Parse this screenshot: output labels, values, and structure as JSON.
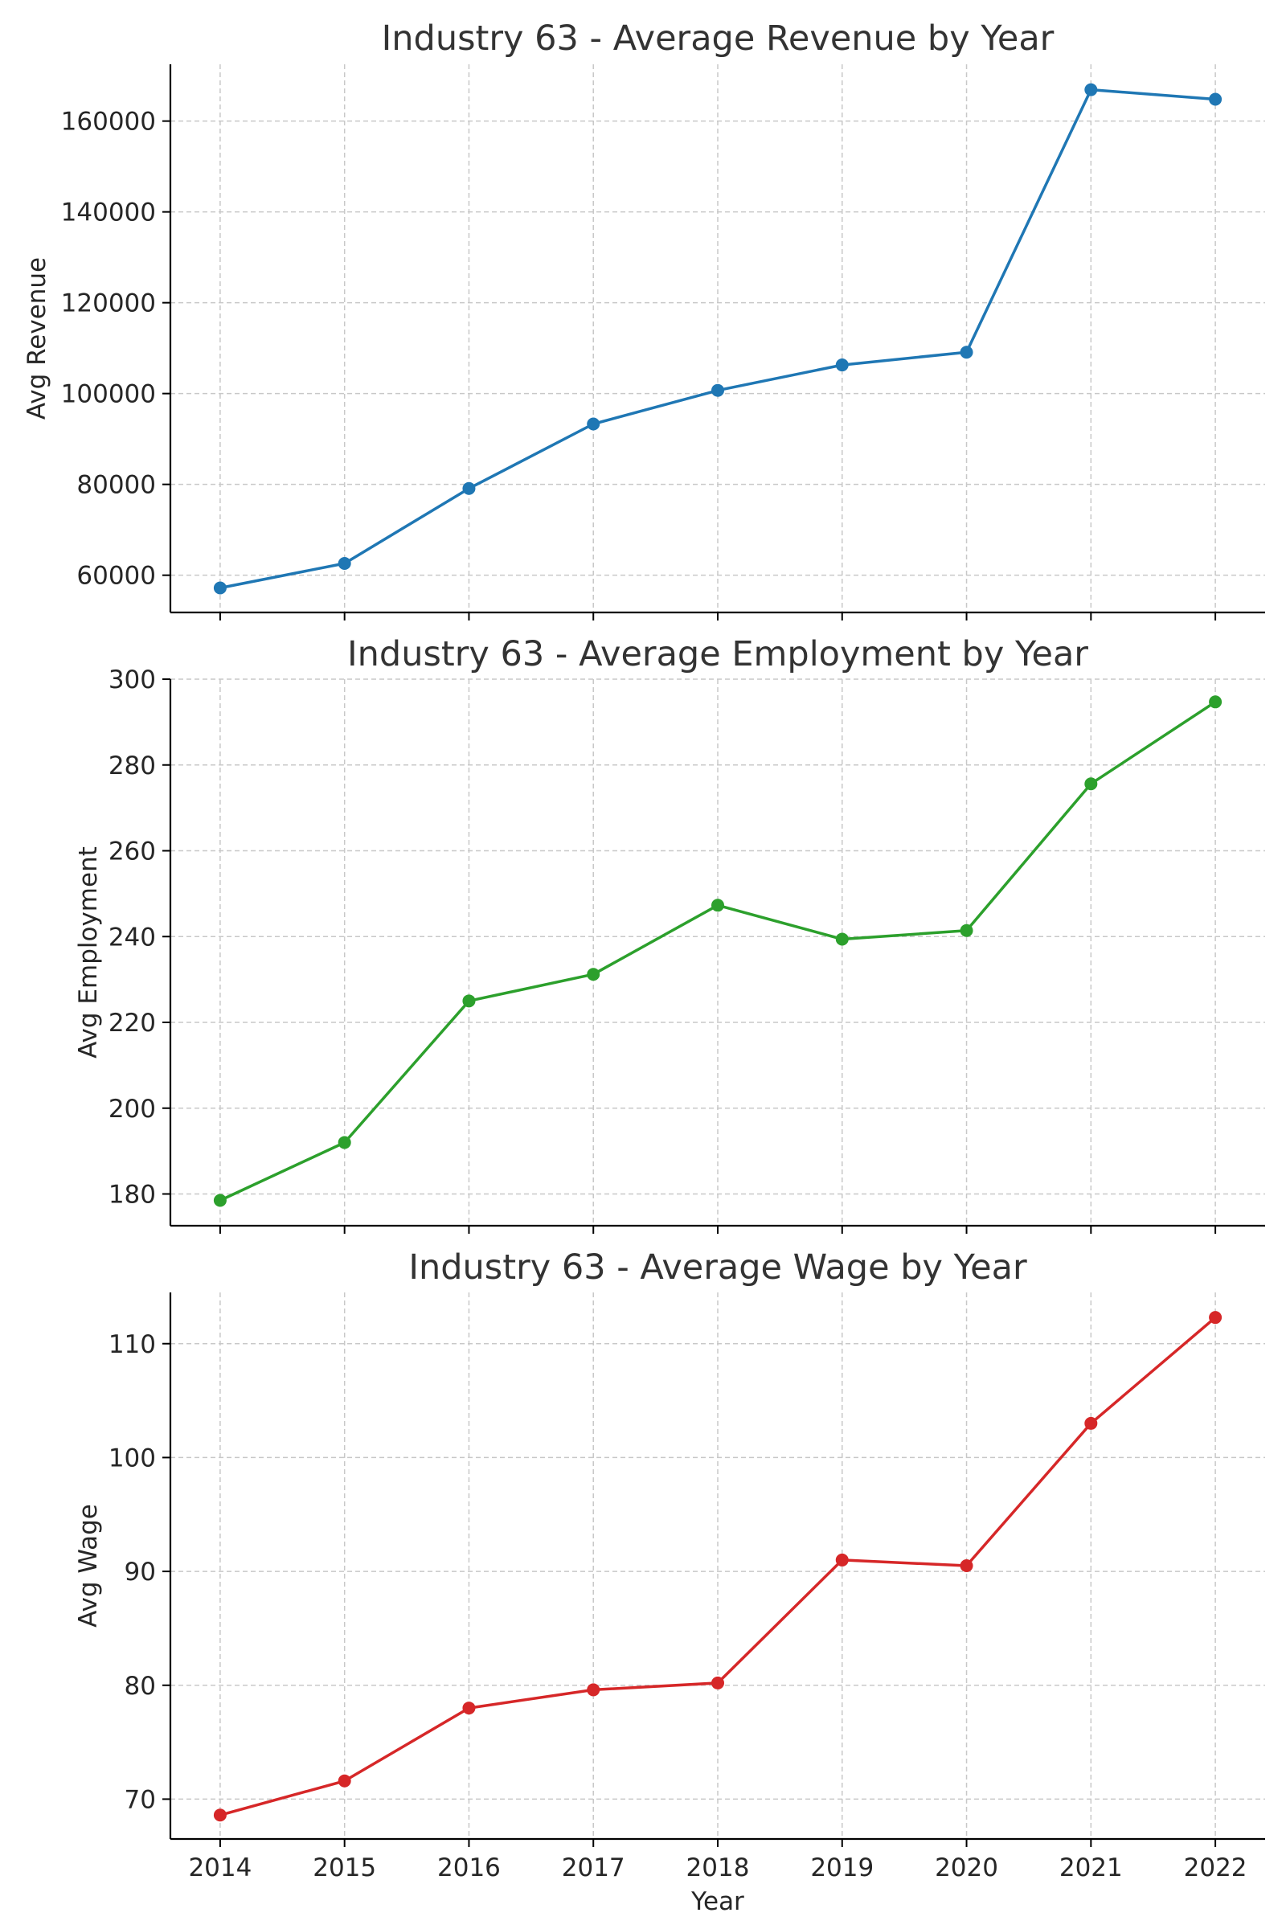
{
  "chart_data": [
    {
      "type": "line",
      "title": "Industry 63 - Average Revenue by Year",
      "xlabel": "",
      "ylabel": "Avg Revenue",
      "x": [
        2014,
        2015,
        2016,
        2017,
        2018,
        2019,
        2020,
        2021,
        2022
      ],
      "x_ticks": [
        "2014",
        "2015",
        "2016",
        "2017",
        "2018",
        "2019",
        "2020",
        "2021",
        "2022"
      ],
      "show_x_tick_labels": false,
      "series": [
        {
          "values": [
            57200,
            62600,
            79100,
            93300,
            100700,
            106300,
            109100,
            166900,
            164800
          ],
          "color": "#1f77b4"
        }
      ],
      "ylim": [
        51800,
        172500
      ],
      "y_ticks": [
        60000,
        80000,
        100000,
        120000,
        140000,
        160000
      ],
      "y_tick_labels": [
        "60000",
        "80000",
        "100000",
        "120000",
        "140000",
        "160000"
      ],
      "grid": true,
      "legend": "none"
    },
    {
      "type": "line",
      "title": "Industry 63 - Average Employment by Year",
      "xlabel": "",
      "ylabel": "Avg Employment",
      "x": [
        2014,
        2015,
        2016,
        2017,
        2018,
        2019,
        2020,
        2021,
        2022
      ],
      "x_ticks": [
        "2014",
        "2015",
        "2016",
        "2017",
        "2018",
        "2019",
        "2020",
        "2021",
        "2022"
      ],
      "show_x_tick_labels": false,
      "series": [
        {
          "values": [
            178.5,
            192.0,
            225.0,
            231.2,
            247.3,
            239.4,
            241.4,
            275.6,
            294.7
          ],
          "color": "#2ca02c"
        }
      ],
      "ylim": [
        172.6,
        300
      ],
      "y_ticks": [
        180,
        200,
        220,
        240,
        260,
        280,
        300
      ],
      "y_tick_labels": [
        "180",
        "200",
        "220",
        "240",
        "260",
        "280",
        "300"
      ],
      "grid": true,
      "legend": "none"
    },
    {
      "type": "line",
      "title": "Industry 63 - Average Wage by Year",
      "xlabel": "Year",
      "ylabel": "Avg Wage",
      "x": [
        2014,
        2015,
        2016,
        2017,
        2018,
        2019,
        2020,
        2021,
        2022
      ],
      "x_ticks": [
        "2014",
        "2015",
        "2016",
        "2017",
        "2018",
        "2019",
        "2020",
        "2021",
        "2022"
      ],
      "show_x_tick_labels": true,
      "series": [
        {
          "values": [
            68.6,
            71.6,
            78.0,
            79.6,
            80.2,
            91.0,
            90.5,
            103.0,
            112.3
          ],
          "color": "#d62728"
        }
      ],
      "ylim": [
        66.5,
        114.5
      ],
      "y_ticks": [
        70,
        80,
        90,
        100,
        110
      ],
      "y_tick_labels": [
        "70",
        "80",
        "90",
        "100",
        "110"
      ],
      "grid": true,
      "legend": "none"
    }
  ]
}
